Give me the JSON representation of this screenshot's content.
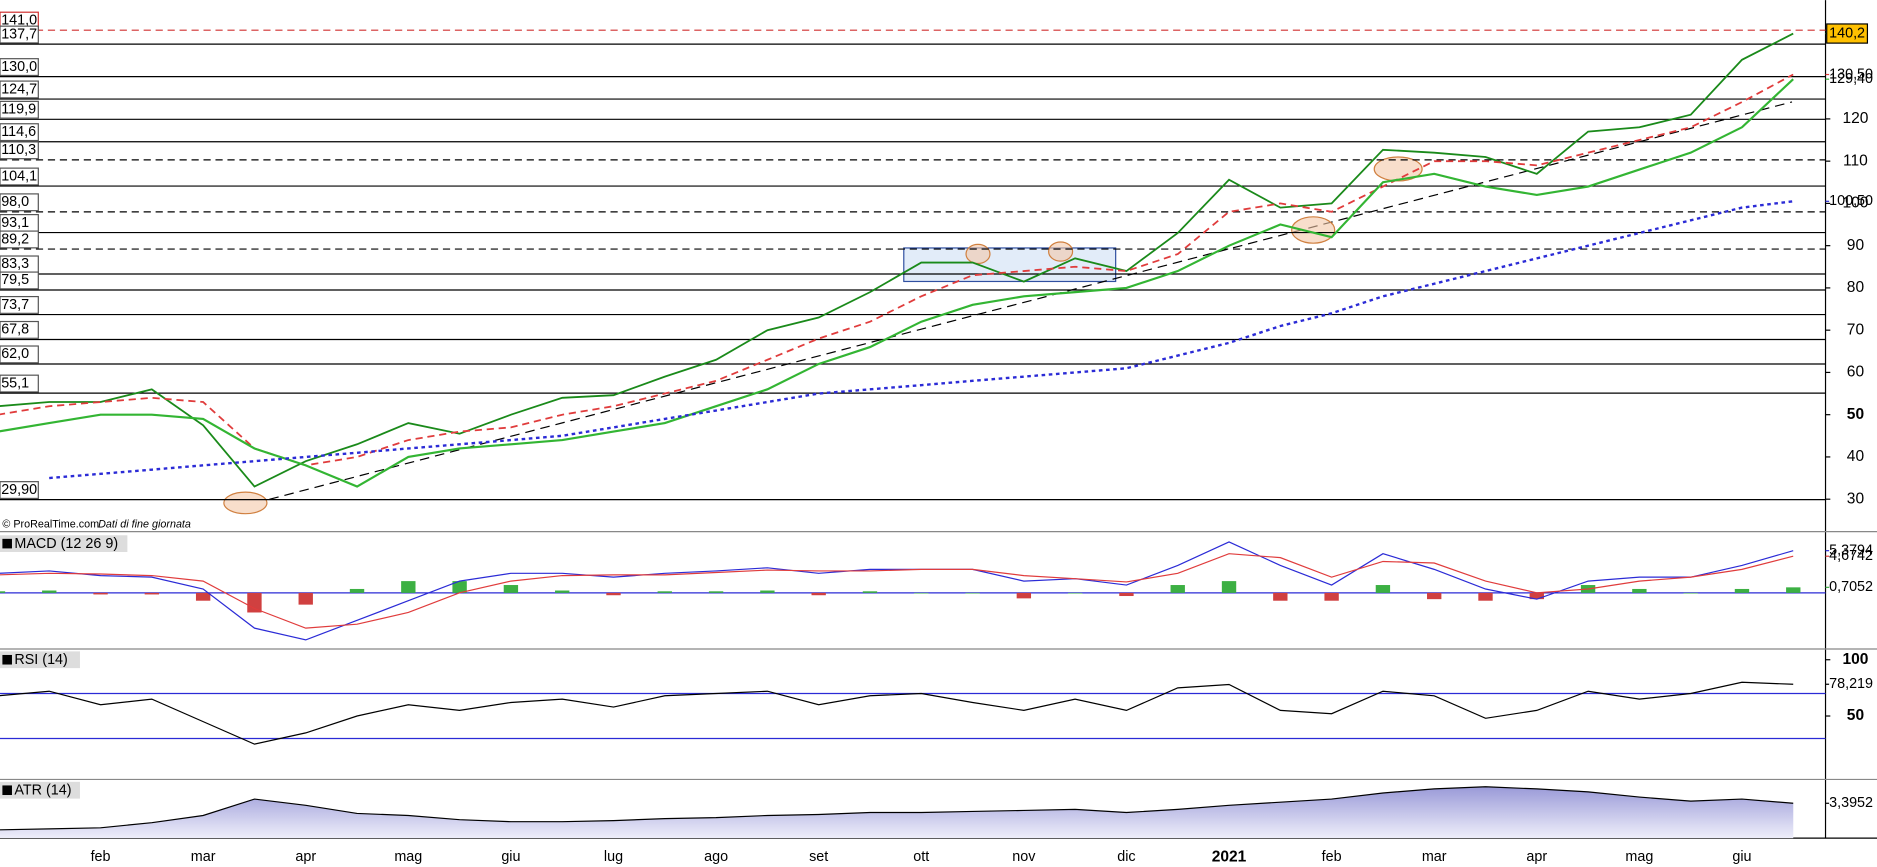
{
  "chart_data": [
    {
      "type": "line",
      "categories": [
        null,
        null,
        "feb",
        null,
        "mar",
        null,
        "apr",
        null,
        "mag",
        null,
        "giu",
        null,
        "lug",
        null,
        "ago",
        null,
        "set",
        null,
        "ott",
        null,
        "nov",
        null,
        "dic",
        null,
        "2021",
        null,
        "feb",
        null,
        "mar",
        null,
        "apr",
        null,
        "mag",
        null,
        "giu",
        null
      ],
      "ylim": [
        22.6,
        148.1
      ],
      "yticks": [
        30,
        40,
        50,
        60,
        70,
        80,
        90,
        100,
        110,
        120
      ],
      "source": "© ProRealTime.com",
      "note": "Dati di fine giornata",
      "levels": [
        {
          "value": 141,
          "label": "141,0",
          "style": "dashed",
          "color": "#d03030"
        },
        {
          "value": 137.7,
          "label": "137,7",
          "style": "solid",
          "color": "#000000"
        },
        {
          "value": 130,
          "label": "130,0",
          "style": "solid",
          "color": "#000000"
        },
        {
          "value": 124.7,
          "label": "124,7",
          "style": "solid",
          "color": "#000000"
        },
        {
          "value": 119.9,
          "label": "119,9",
          "style": "solid",
          "color": "#000000"
        },
        {
          "value": 114.6,
          "label": "114,6",
          "style": "solid",
          "color": "#000000"
        },
        {
          "value": 110.3,
          "label": "110,3",
          "style": "dashed",
          "color": "#000000"
        },
        {
          "value": 104.1,
          "label": "104,1",
          "style": "solid",
          "color": "#000000"
        },
        {
          "value": 98,
          "label": "98,0",
          "style": "dashed",
          "color": "#000000"
        },
        {
          "value": 93.1,
          "label": "93,1",
          "style": "solid",
          "color": "#000000"
        },
        {
          "value": 89.2,
          "label": "89,2",
          "style": "dashed",
          "color": "#000000"
        },
        {
          "value": 83.3,
          "label": "83,3",
          "style": "solid",
          "color": "#000000"
        },
        {
          "value": 79.5,
          "label": "79,5",
          "style": "solid",
          "color": "#000000"
        },
        {
          "value": 73.7,
          "label": "73,7",
          "style": "solid",
          "color": "#000000"
        },
        {
          "value": 67.8,
          "label": "67,8",
          "style": "solid",
          "color": "#000000"
        },
        {
          "value": 62,
          "label": "62,0",
          "style": "solid",
          "color": "#000000"
        },
        {
          "value": 55.1,
          "label": "55,1",
          "style": "solid",
          "color": "#000000"
        },
        {
          "value": 29.9,
          "label": "29,90",
          "style": "solid",
          "color": "#000000"
        }
      ],
      "series": [
        {
          "color": "#1a8a1a",
          "style": "solid",
          "width": 1.5,
          "values": [
            52,
            53,
            53,
            56,
            47.5,
            33,
            39,
            43,
            48,
            45.5,
            50,
            54,
            54.6,
            59,
            63,
            70,
            73,
            79,
            86,
            86,
            81.5,
            87,
            84,
            93,
            105.6,
            99,
            100,
            112.7,
            112,
            111,
            107,
            117,
            118,
            121,
            134,
            140.2
          ],
          "last_value": {
            "value": 140.2,
            "label": "140,2"
          },
          "box": "#ffc000"
        },
        {
          "color": "#e03c3c",
          "style": "dashed",
          "width": 1.5,
          "values": [
            50,
            52,
            53,
            54,
            53,
            42,
            38,
            40,
            44,
            46,
            47,
            50,
            52,
            55,
            58,
            63,
            68,
            72,
            78,
            83,
            84,
            85,
            84,
            88,
            98,
            100,
            98,
            104,
            110,
            110,
            109,
            112,
            115,
            118,
            124,
            130.5
          ],
          "last_value": {
            "value": 130.5,
            "label": "130,50"
          }
        },
        {
          "color": "#33b533",
          "style": "solid",
          "width": 1.8,
          "values": [
            46,
            48,
            50,
            50,
            49,
            42,
            38,
            33,
            40,
            42,
            43,
            44,
            46,
            48,
            52,
            56,
            62,
            66,
            72,
            76,
            78,
            79,
            80,
            84,
            90,
            95,
            92,
            105,
            107,
            104,
            102,
            104,
            108,
            112,
            118,
            129.4
          ],
          "last_value": {
            "value": 129.4,
            "label": "129,40"
          }
        },
        {
          "color": "#2b2bd6",
          "style": "dotted",
          "width": 2,
          "values": [
            null,
            35,
            36,
            37,
            38,
            39,
            40,
            41,
            42,
            43,
            44,
            45,
            47,
            49,
            51,
            53,
            55,
            56,
            57,
            58,
            59,
            60,
            61,
            64,
            67,
            71,
            74,
            78,
            81,
            84,
            87,
            90,
            93,
            96,
            99,
            100.5
          ],
          "last_value": {
            "value": 100.5,
            "label": "100,50"
          }
        }
      ]
    },
    {
      "type": "line",
      "title": "MACD (12 26 9)",
      "ylim": [
        -7,
        7.5
      ],
      "series": [
        {
          "type": "bar",
          "color": "#3cb043",
          "color_down": "#d04040",
          "values": [
            0.2,
            0.3,
            -0.2,
            -0.2,
            -1,
            -2.5,
            -1.5,
            0.5,
            1.5,
            1.5,
            1,
            0.3,
            -0.3,
            0.2,
            0.2,
            0.3,
            -0.3,
            0.2,
            0,
            0,
            -0.7,
            0,
            -0.4,
            1,
            1.5,
            -1,
            -1,
            1,
            -0.8,
            -1,
            -0.8,
            1,
            0.5,
            0,
            0.5,
            0.7052
          ],
          "last_value": {
            "value": 0.7052,
            "label": "0,7052"
          }
        },
        {
          "color": "#2b2bd6",
          "style": "solid",
          "width": 1,
          "values": [
            2.5,
            2.8,
            2.2,
            2,
            0.5,
            -4.5,
            -6,
            -3.5,
            -1,
            1.5,
            2.5,
            2.5,
            2,
            2.5,
            2.8,
            3.2,
            2.5,
            3,
            3,
            3,
            1.5,
            1.8,
            1,
            3.5,
            6.5,
            3.5,
            1,
            5,
            3,
            0.5,
            -0.8,
            1.5,
            2,
            2,
            3.5,
            5.3794
          ],
          "last_value": {
            "value": 5.3794,
            "label": "5,3794"
          }
        },
        {
          "color": "#e03c3c",
          "style": "solid",
          "width": 1,
          "values": [
            2.3,
            2.5,
            2.4,
            2.2,
            1.5,
            -2,
            -4.5,
            -4,
            -2.5,
            0,
            1.5,
            2.2,
            2.3,
            2.3,
            2.6,
            2.9,
            2.8,
            2.8,
            3,
            3,
            2.2,
            1.8,
            1.4,
            2.5,
            5,
            4.5,
            2,
            4,
            3.8,
            1.5,
            0,
            0.5,
            1.5,
            2,
            3,
            4.6742
          ],
          "last_value": {
            "value": 4.6742,
            "label": "4,6742"
          }
        }
      ]
    },
    {
      "type": "line",
      "title": "RSI (14)",
      "ylim": [
        -5.3,
        108.5
      ],
      "yticks": [
        100,
        50
      ],
      "levels": [
        70,
        30
      ],
      "level_color": "#2b2bd6",
      "series": [
        {
          "color": "#000000",
          "style": "solid",
          "width": 1,
          "values": [
            68,
            72,
            60,
            65,
            45,
            25,
            35,
            50,
            60,
            55,
            62,
            65,
            58,
            68,
            70,
            72,
            60,
            68,
            70,
            62,
            55,
            65,
            55,
            75,
            78,
            55,
            52,
            72,
            68,
            48,
            55,
            72,
            65,
            70,
            80,
            78.219
          ],
          "last_value": {
            "value": 78.219,
            "label": "78,219"
          }
        }
      ]
    },
    {
      "type": "line",
      "title": "ATR (14)",
      "ylim": [
        0,
        5.6
      ],
      "series": [
        {
          "color": "#000000",
          "style": "solid",
          "width": 1,
          "fill": "#b8b8e0",
          "values": [
            0.8,
            0.9,
            1,
            1.5,
            2.2,
            3.8,
            3.2,
            2.4,
            2.2,
            1.8,
            1.6,
            1.6,
            1.7,
            1.9,
            2,
            2.2,
            2.3,
            2.5,
            2.5,
            2.6,
            2.7,
            2.8,
            2.5,
            2.8,
            3.2,
            3.5,
            3.8,
            4.4,
            4.8,
            5,
            4.8,
            4.5,
            4,
            3.6,
            3.8,
            3.3952
          ],
          "last_value": {
            "value": 3.3952,
            "label": "3,3952"
          }
        }
      ]
    }
  ]
}
